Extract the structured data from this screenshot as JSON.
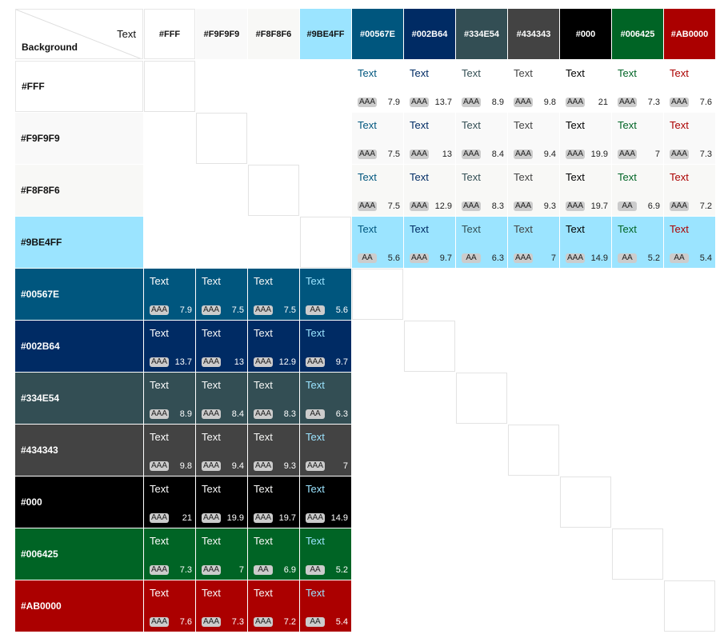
{
  "corner": {
    "text_label": "Text",
    "background_label": "Background"
  },
  "colors": [
    "#FFF",
    "#F9F9F9",
    "#F8F8F6",
    "#9BE4FF",
    "#00567E",
    "#002B64",
    "#334E54",
    "#434343",
    "#000",
    "#006425",
    "#AB0000"
  ],
  "colors_hex": [
    "#ffffff",
    "#f9f9f9",
    "#f8f8f6",
    "#9be4ff",
    "#00567e",
    "#002b64",
    "#334e54",
    "#434343",
    "#000000",
    "#006425",
    "#ab0000"
  ],
  "sample_text": "Text",
  "light_rows": [
    {
      "bg": "#FFF",
      "cells": [
        [
          "AAA",
          "7.9"
        ],
        [
          "AAA",
          "13.7"
        ],
        [
          "AAA",
          "8.9"
        ],
        [
          "AAA",
          "9.8"
        ],
        [
          "AAA",
          "21"
        ],
        [
          "AAA",
          "7.3"
        ],
        [
          "AAA",
          "7.6"
        ]
      ]
    },
    {
      "bg": "#F9F9F9",
      "cells": [
        [
          "AAA",
          "7.5"
        ],
        [
          "AAA",
          "13"
        ],
        [
          "AAA",
          "8.4"
        ],
        [
          "AAA",
          "9.4"
        ],
        [
          "AAA",
          "19.9"
        ],
        [
          "AAA",
          "7"
        ],
        [
          "AAA",
          "7.3"
        ]
      ]
    },
    {
      "bg": "#F8F8F6",
      "cells": [
        [
          "AAA",
          "7.5"
        ],
        [
          "AAA",
          "12.9"
        ],
        [
          "AAA",
          "8.3"
        ],
        [
          "AAA",
          "9.3"
        ],
        [
          "AAA",
          "19.7"
        ],
        [
          "AA",
          "6.9"
        ],
        [
          "AAA",
          "7.2"
        ]
      ]
    },
    {
      "bg": "#9BE4FF",
      "cells": [
        [
          "AA",
          "5.6"
        ],
        [
          "AAA",
          "9.7"
        ],
        [
          "AA",
          "6.3"
        ],
        [
          "AAA",
          "7"
        ],
        [
          "AAA",
          "14.9"
        ],
        [
          "AA",
          "5.2"
        ],
        [
          "AA",
          "5.4"
        ]
      ]
    }
  ],
  "dark_rows": [
    {
      "bg": "#00567E",
      "cells": [
        [
          "AAA",
          "7.9"
        ],
        [
          "AAA",
          "7.5"
        ],
        [
          "AAA",
          "7.5"
        ],
        [
          "AA",
          "5.6"
        ]
      ]
    },
    {
      "bg": "#002B64",
      "cells": [
        [
          "AAA",
          "13.7"
        ],
        [
          "AAA",
          "13"
        ],
        [
          "AAA",
          "12.9"
        ],
        [
          "AAA",
          "9.7"
        ]
      ]
    },
    {
      "bg": "#334E54",
      "cells": [
        [
          "AAA",
          "8.9"
        ],
        [
          "AAA",
          "8.4"
        ],
        [
          "AAA",
          "8.3"
        ],
        [
          "AA",
          "6.3"
        ]
      ]
    },
    {
      "bg": "#434343",
      "cells": [
        [
          "AAA",
          "9.8"
        ],
        [
          "AAA",
          "9.4"
        ],
        [
          "AAA",
          "9.3"
        ],
        [
          "AAA",
          "7"
        ]
      ]
    },
    {
      "bg": "#000",
      "cells": [
        [
          "AAA",
          "21"
        ],
        [
          "AAA",
          "19.9"
        ],
        [
          "AAA",
          "19.7"
        ],
        [
          "AAA",
          "14.9"
        ]
      ]
    },
    {
      "bg": "#006425",
      "cells": [
        [
          "AAA",
          "7.3"
        ],
        [
          "AAA",
          "7"
        ],
        [
          "AA",
          "6.9"
        ],
        [
          "AA",
          "5.2"
        ]
      ]
    },
    {
      "bg": "#AB0000",
      "cells": [
        [
          "AAA",
          "7.6"
        ],
        [
          "AAA",
          "7.3"
        ],
        [
          "AAA",
          "7.2"
        ],
        [
          "AA",
          "5.4"
        ]
      ]
    }
  ]
}
